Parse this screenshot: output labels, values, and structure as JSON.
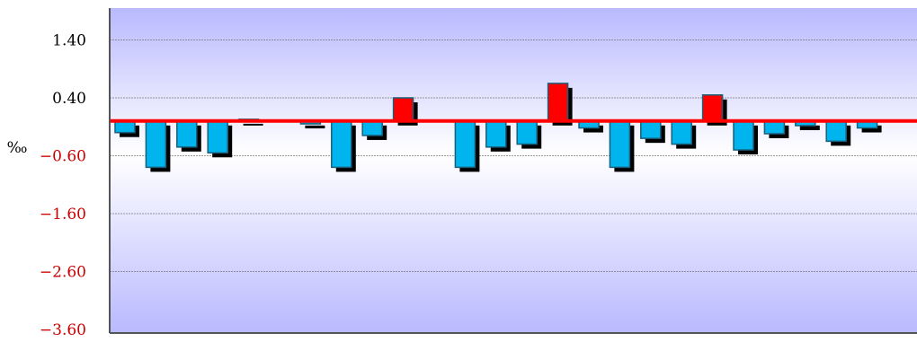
{
  "chart_data": {
    "type": "bar",
    "title": "",
    "xlabel": "",
    "ylabel": "‰",
    "ylim": [
      -3.6,
      2.0
    ],
    "grid": true,
    "legend": "none",
    "y_ticks": [
      {
        "value": 1.4,
        "label": "1.40"
      },
      {
        "value": 0.4,
        "label": "0.40"
      },
      {
        "value": -0.6,
        "label": "−0.60"
      },
      {
        "value": -1.6,
        "label": "−1.60"
      },
      {
        "value": -2.6,
        "label": "−2.60"
      },
      {
        "value": -3.6,
        "label": "−3.60"
      }
    ],
    "reference_line": {
      "value": 0.0,
      "color": "#ff0000"
    },
    "colors": {
      "negative": "#00b4ee",
      "positive": "#ff0000",
      "shadow": "#000000",
      "bar_edge": "#1a5f7a",
      "tick_positive": "#000000",
      "tick_negative": "#cc0000",
      "plot_bg_top": "#b9b9ff",
      "plot_bg_mid": "#ffffff",
      "plot_bg_bottom": "#b9b9ff"
    },
    "series": [
      {
        "values": [
          -0.2,
          -0.8,
          -0.45,
          -0.55,
          0.03,
          null,
          -0.05,
          -0.8,
          -0.25,
          0.4,
          null,
          -0.8,
          -0.45,
          -0.4,
          0.65,
          -0.12,
          -0.8,
          -0.3,
          -0.4,
          0.45,
          -0.5,
          -0.22,
          -0.08,
          -0.35,
          -0.12
        ]
      }
    ]
  }
}
